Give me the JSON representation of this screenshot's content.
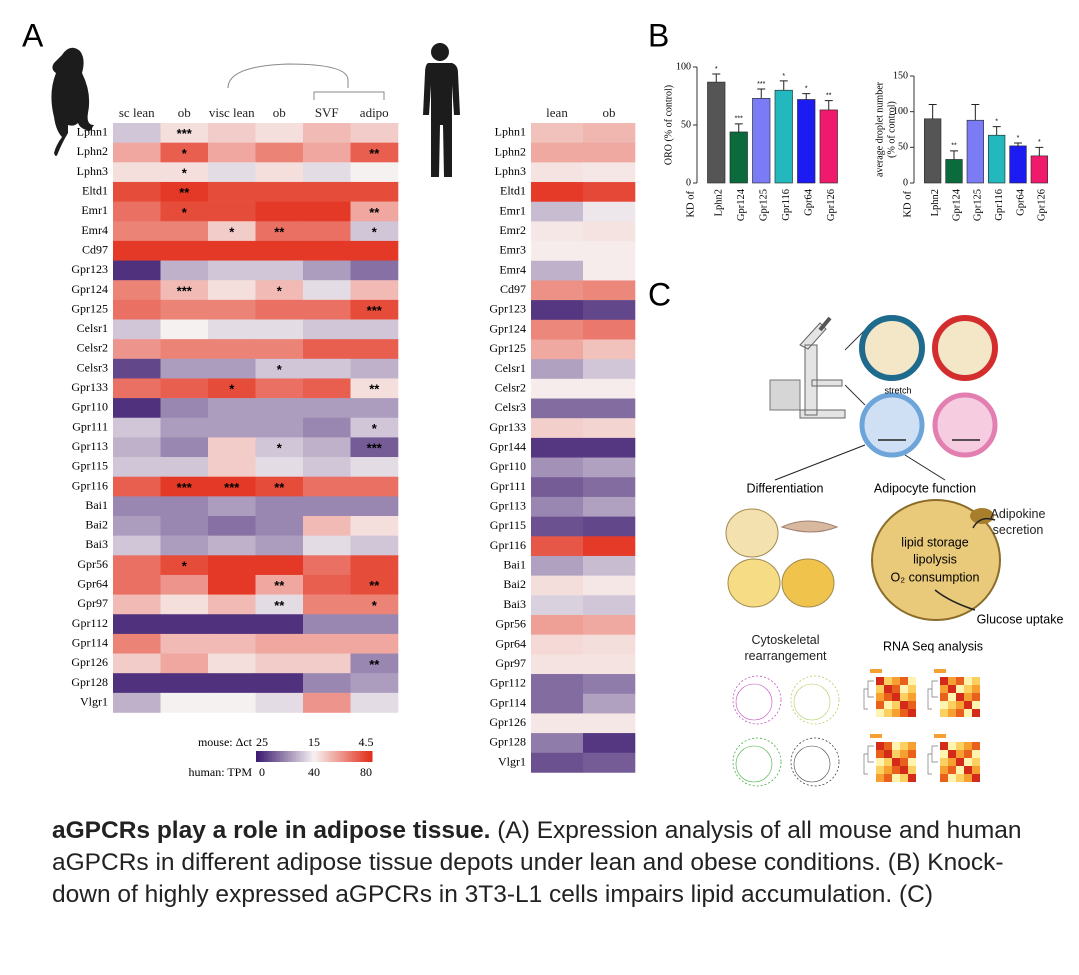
{
  "panel_a": {
    "letter": "A",
    "mouse": {
      "columns": [
        "sc lean",
        "ob",
        "visc lean",
        "ob",
        "SVF",
        "adipo"
      ],
      "rows": [
        "Lphn1",
        "Lphn2",
        "Lphn3",
        "Eltd1",
        "Emr1",
        "Emr4",
        "Cd97",
        "Gpr123",
        "Gpr124",
        "Gpr125",
        "Celsr1",
        "Celsr2",
        "Celsr3",
        "Gpr133",
        "Gpr110",
        "Gpr111",
        "Gpr113",
        "Gpr115",
        "Gpr116",
        "Bai1",
        "Bai2",
        "Bai3",
        "Gpr56",
        "Gpr64",
        "Gpr97",
        "Gpr112",
        "Gpr114",
        "Gpr126",
        "Gpr128",
        "Vlgr1"
      ],
      "values": [
        [
          17,
          14,
          13,
          14,
          12,
          13
        ],
        [
          11,
          7,
          11,
          9,
          11,
          7
        ],
        [
          14,
          14,
          16,
          14,
          16,
          15
        ],
        [
          6,
          5,
          6,
          6,
          6,
          6
        ],
        [
          8,
          6,
          6,
          5,
          5,
          11
        ],
        [
          9,
          9,
          13,
          8,
          8,
          17
        ],
        [
          5,
          5,
          5,
          5,
          5,
          5
        ],
        [
          24,
          18,
          17,
          17,
          19,
          21
        ],
        [
          9,
          12,
          14,
          12,
          16,
          12
        ],
        [
          8,
          9,
          9,
          8,
          8,
          6
        ],
        [
          17,
          15,
          16,
          16,
          17,
          17
        ],
        [
          10,
          9,
          9,
          9,
          7,
          7
        ],
        [
          23,
          19,
          19,
          17,
          17,
          18
        ],
        [
          8,
          7,
          6,
          8,
          7,
          14
        ],
        [
          24,
          20,
          19,
          19,
          19,
          19
        ],
        [
          17,
          19,
          19,
          19,
          20,
          17
        ],
        [
          18,
          20,
          13,
          17,
          18,
          22
        ],
        [
          17,
          17,
          13,
          16,
          17,
          16
        ],
        [
          7,
          5,
          5,
          6,
          8,
          8
        ],
        [
          20,
          20,
          19,
          20,
          20,
          20
        ],
        [
          19,
          20,
          21,
          20,
          12,
          14
        ],
        [
          17,
          19,
          18,
          19,
          16,
          17
        ],
        [
          8,
          6,
          5,
          5,
          8,
          6
        ],
        [
          8,
          10,
          5,
          11,
          7,
          6
        ],
        [
          12,
          14,
          12,
          16,
          9,
          9
        ],
        [
          24,
          24,
          24,
          24,
          20,
          20
        ],
        [
          9,
          12,
          12,
          11,
          11,
          11
        ],
        [
          13,
          11,
          14,
          13,
          13,
          20
        ],
        [
          24,
          24,
          24,
          24,
          20,
          19
        ],
        [
          18,
          15,
          15,
          16,
          10,
          16
        ]
      ],
      "stars": [
        [
          null,
          "***",
          null,
          null,
          null,
          null
        ],
        [
          null,
          "*",
          null,
          null,
          null,
          "**"
        ],
        [
          null,
          "*",
          null,
          null,
          null,
          null
        ],
        [
          null,
          "**",
          null,
          null,
          null,
          null
        ],
        [
          null,
          "*",
          null,
          null,
          null,
          "**"
        ],
        [
          null,
          null,
          "*",
          "**",
          null,
          "*"
        ],
        [
          null,
          null,
          null,
          null,
          null,
          null
        ],
        [
          null,
          null,
          null,
          null,
          null,
          null
        ],
        [
          null,
          "***",
          null,
          "*",
          null,
          null
        ],
        [
          null,
          null,
          null,
          null,
          null,
          "***"
        ],
        [
          null,
          null,
          null,
          null,
          null,
          null
        ],
        [
          null,
          null,
          null,
          null,
          null,
          null
        ],
        [
          null,
          null,
          null,
          "*",
          null,
          null
        ],
        [
          null,
          null,
          "*",
          null,
          null,
          "**"
        ],
        [
          null,
          null,
          null,
          null,
          null,
          null
        ],
        [
          null,
          null,
          null,
          null,
          null,
          "*"
        ],
        [
          null,
          null,
          null,
          "*",
          null,
          "***"
        ],
        [
          null,
          null,
          null,
          null,
          null,
          null
        ],
        [
          null,
          "***",
          "***",
          "**",
          null,
          null
        ],
        [
          null,
          null,
          null,
          null,
          null,
          null
        ],
        [
          null,
          null,
          null,
          null,
          null,
          null
        ],
        [
          null,
          null,
          null,
          null,
          null,
          null
        ],
        [
          null,
          "*",
          null,
          null,
          null,
          null
        ],
        [
          null,
          null,
          null,
          "**",
          null,
          "**"
        ],
        [
          null,
          null,
          null,
          "**",
          null,
          "*"
        ],
        [
          null,
          null,
          null,
          null,
          null,
          null
        ],
        [
          null,
          null,
          null,
          null,
          null,
          null
        ],
        [
          null,
          null,
          null,
          null,
          null,
          "**"
        ],
        [
          null,
          null,
          null,
          null,
          null,
          null
        ],
        [
          null,
          null,
          null,
          null,
          null,
          null
        ]
      ],
      "scale_label": "mouse: Δct",
      "ticks": [
        25,
        15,
        4.5
      ]
    },
    "human": {
      "columns": [
        "lean",
        "ob"
      ],
      "rows": [
        "Lphn1",
        "Lphn2",
        "Lphn3",
        "Eltd1",
        "Emr1",
        "Emr2",
        "Emr3",
        "Emr4",
        "Cd97",
        "Gpr123",
        "Gpr124",
        "Gpr125",
        "Celsr1",
        "Celsr2",
        "Celsr3",
        "Gpr133",
        "Gpr144",
        "Gpr110",
        "Gpr111",
        "Gpr113",
        "Gpr115",
        "Gpr116",
        "Bai1",
        "Bai2",
        "Bai3",
        "Gpr56",
        "Gpr64",
        "Gpr97",
        "Gpr112",
        "Gpr114",
        "Gpr126",
        "Gpr128",
        "Vlgr1"
      ],
      "values": [
        [
          50,
          52
        ],
        [
          55,
          55
        ],
        [
          43,
          42
        ],
        [
          78,
          75
        ],
        [
          30,
          38
        ],
        [
          42,
          43
        ],
        [
          41,
          41
        ],
        [
          28,
          41
        ],
        [
          60,
          62
        ],
        [
          5,
          8
        ],
        [
          62,
          65
        ],
        [
          55,
          50
        ],
        [
          25,
          32
        ],
        [
          41,
          41
        ],
        [
          15,
          15
        ],
        [
          47,
          46
        ],
        [
          5,
          5
        ],
        [
          22,
          25
        ],
        [
          12,
          15
        ],
        [
          20,
          25
        ],
        [
          10,
          8
        ],
        [
          72,
          78
        ],
        [
          25,
          30
        ],
        [
          44,
          42
        ],
        [
          34,
          32
        ],
        [
          57,
          55
        ],
        [
          45,
          44
        ],
        [
          43,
          43
        ],
        [
          15,
          18
        ],
        [
          15,
          25
        ],
        [
          42,
          42
        ],
        [
          18,
          5
        ],
        [
          10,
          12
        ]
      ],
      "scale_label": "human: TPM",
      "ticks": [
        0,
        40,
        80
      ]
    },
    "colors": [
      "#3d1c70",
      "#f6f1f1",
      "#e3301c"
    ]
  },
  "panel_b": {
    "letter": "B",
    "charts": [
      {
        "type": "bar",
        "y_label": [
          "ORO (% of control)"
        ],
        "prefix": "KD of",
        "categories": [
          "Lphn2",
          "Gpr124",
          "Gpr125",
          "Gpr116",
          "Gpr64",
          "Gpr126"
        ],
        "values": [
          87,
          44,
          73,
          80,
          72,
          63
        ],
        "errors": [
          7,
          7,
          8,
          8,
          5,
          8
        ],
        "significance": [
          "*",
          "***",
          "***",
          "*",
          "*",
          "**"
        ],
        "colors": [
          "#555555",
          "#0b6b3c",
          "#7b7cf5",
          "#22b8bd",
          "#1c1cf2",
          "#f01a6c"
        ],
        "ylim": [
          0,
          100
        ],
        "yticks": [
          0,
          50,
          100
        ]
      },
      {
        "type": "bar",
        "y_label": [
          "average droplet number",
          "(% of control)"
        ],
        "prefix": "KD of",
        "categories": [
          "Lphn2",
          "Gpr124",
          "Gpr125",
          "Gpr116",
          "Gpr64",
          "Gpr126"
        ],
        "values": [
          90,
          33,
          88,
          67,
          52,
          38
        ],
        "errors": [
          20,
          12,
          22,
          12,
          4,
          12
        ],
        "significance": [
          null,
          "**",
          null,
          "*",
          "*",
          "*"
        ],
        "colors": [
          "#555555",
          "#0b6b3c",
          "#7b7cf5",
          "#22b8bd",
          "#1c1cf2",
          "#f01a6c"
        ],
        "ylim": [
          0,
          150
        ],
        "yticks": [
          0,
          50,
          100,
          150
        ]
      }
    ]
  },
  "panel_c": {
    "letter": "C",
    "stretch": "stretch",
    "differentiation": "Differentiation",
    "adipocyte_function": "Adipocyte function",
    "adipokine": "Adipokine secretion",
    "inside": [
      "lipid storage",
      "lipolysis",
      "O₂ consumption"
    ],
    "glucose": "Glucose uptake",
    "cytoskeletal": "Cytoskeletal rearrangement",
    "rnaseq": "RNA Seq analysis"
  },
  "caption": {
    "bold": "aGPCRs play a role in adipose tissue.",
    "text": "(A) Expression analysis of all mouse and human aGPCRs in different adipose tissue depots under lean and obese conditions. (B) Knock-down of highly expressed aGPCRs in 3T3-L1 cells impairs lipid accumulation. (C)"
  }
}
